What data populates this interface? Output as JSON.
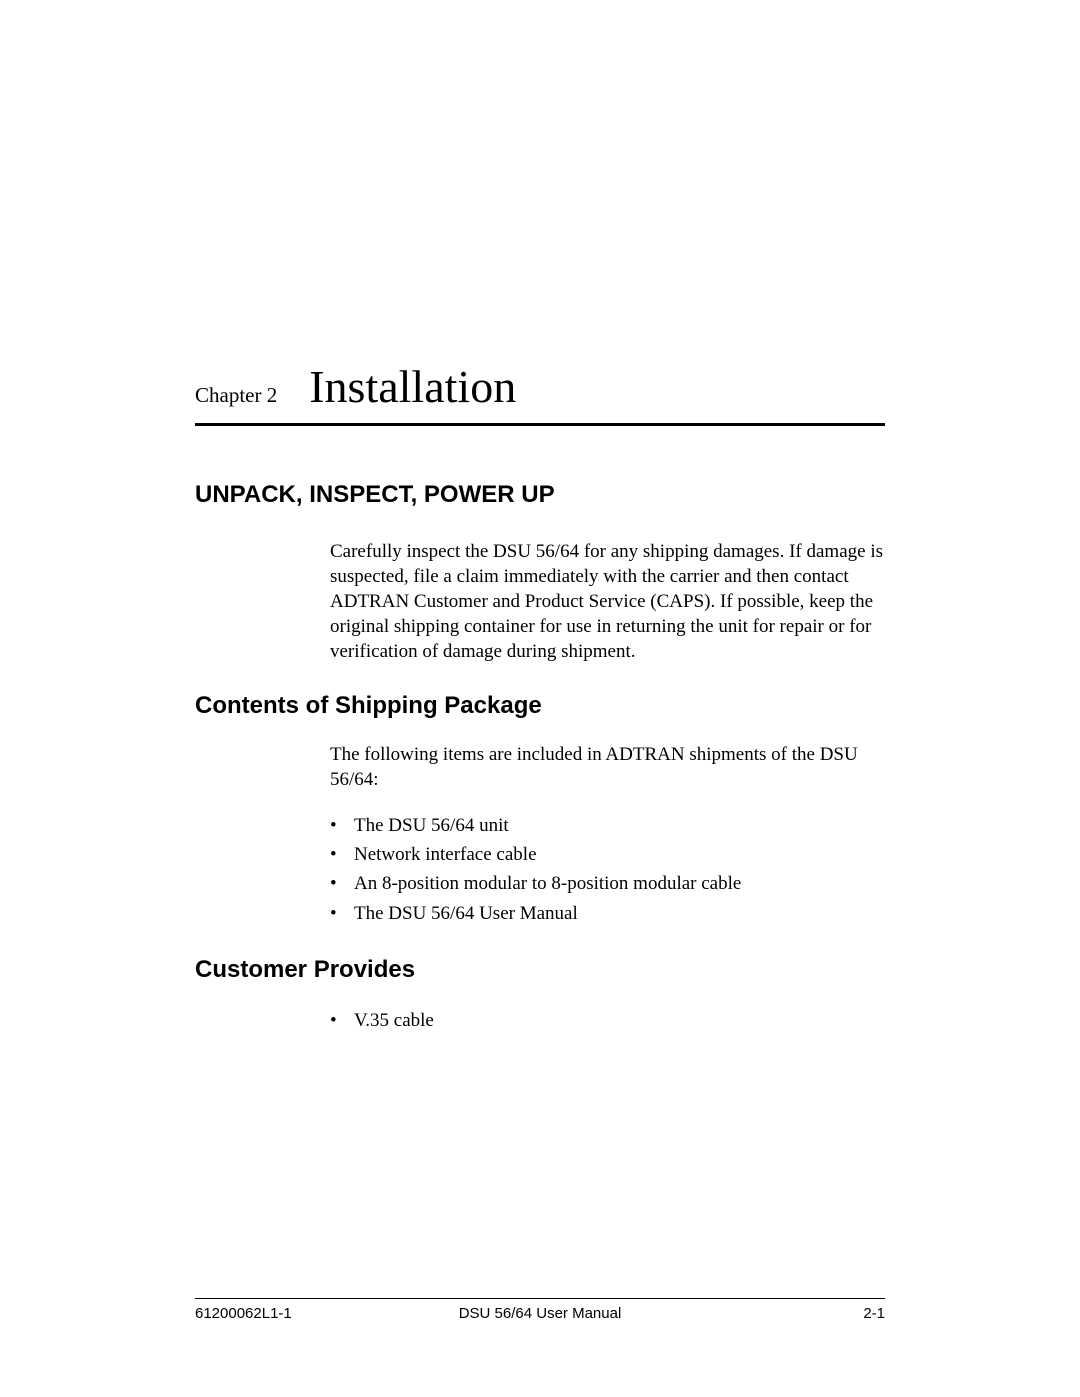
{
  "chapter": {
    "label": "Chapter 2",
    "title": "Installation"
  },
  "sections": {
    "unpack": {
      "heading": "UNPACK, INSPECT, POWER UP",
      "body": "Carefully inspect the DSU 56/64 for any shipping damages. If damage is suspected, file a claim immediately with the carrier and then contact ADTRAN Customer and Product Service (CAPS). If possible, keep the original shipping container for use in returning the unit for repair or for verification of damage during shipment."
    },
    "contents": {
      "heading": "Contents of Shipping Package",
      "body": "The following items are included in ADTRAN shipments of the DSU 56/64:",
      "items": [
        "The DSU 56/64 unit",
        "Network interface cable",
        "An 8-position modular to 8-position modular cable",
        "The DSU 56/64 User Manual"
      ]
    },
    "customer": {
      "heading": "Customer Provides",
      "items": [
        "V.35 cable"
      ]
    }
  },
  "footer": {
    "left": "61200062L1-1",
    "center": "DSU 56/64 User Manual",
    "right": "2-1"
  }
}
